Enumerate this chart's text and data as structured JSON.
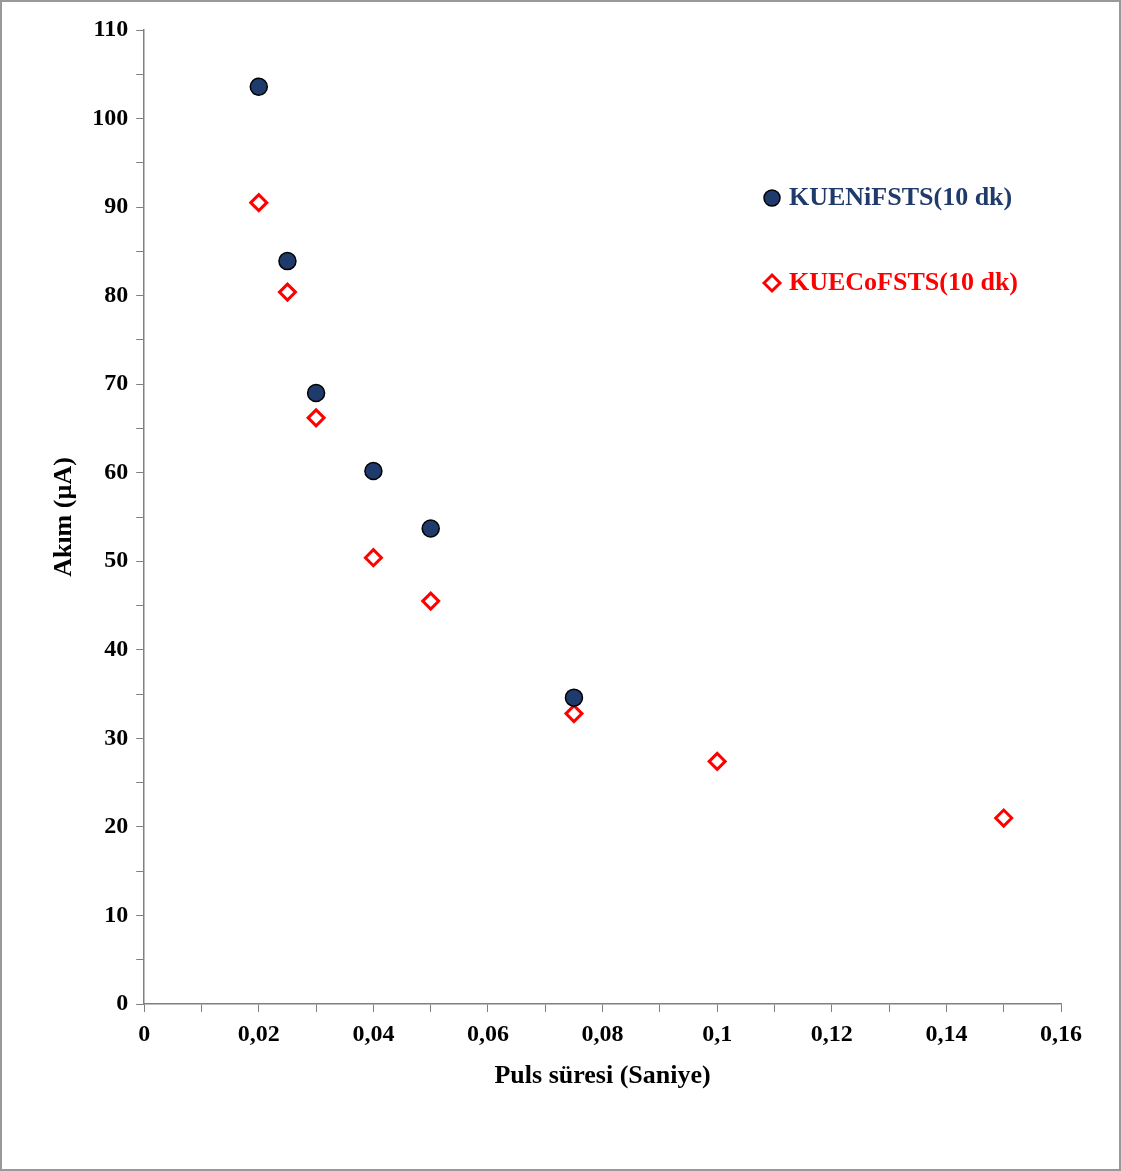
{
  "chart_data": {
    "type": "scatter",
    "xlabel": "Puls süresi (Saniye)",
    "ylabel": "Akım (µA)",
    "xlim": [
      0,
      0.16
    ],
    "ylim": [
      0,
      110
    ],
    "xticks": [
      0,
      {
        "value": 0.01,
        "label": null
      },
      {
        "value": 0.02,
        "label": "0,02"
      },
      {
        "value": 0.03,
        "label": null
      },
      {
        "value": 0.04,
        "label": "0,04"
      },
      {
        "value": 0.05,
        "label": null
      },
      {
        "value": 0.06,
        "label": "0,06"
      },
      {
        "value": 0.07,
        "label": null
      },
      {
        "value": 0.08,
        "label": "0,08"
      },
      {
        "value": 0.09,
        "label": null
      },
      {
        "value": 0.1,
        "label": "0,1"
      },
      {
        "value": 0.11,
        "label": null
      },
      {
        "value": 0.12,
        "label": "0,12"
      },
      {
        "value": 0.13,
        "label": null
      },
      {
        "value": 0.14,
        "label": "0,14"
      },
      {
        "value": 0.15,
        "label": null
      },
      {
        "value": 0.16,
        "label": "0,16"
      }
    ],
    "yticks": [
      0,
      {
        "value": 5,
        "label": null
      },
      10,
      {
        "value": 15,
        "label": null
      },
      20,
      {
        "value": 25,
        "label": null
      },
      30,
      {
        "value": 35,
        "label": null
      },
      40,
      {
        "value": 45,
        "label": null
      },
      50,
      {
        "value": 55,
        "label": null
      },
      60,
      {
        "value": 65,
        "label": null
      },
      70,
      {
        "value": 75,
        "label": null
      },
      80,
      {
        "value": 85,
        "label": null
      },
      90,
      {
        "value": 95,
        "label": null
      },
      100,
      {
        "value": 105,
        "label": null
      },
      110
    ],
    "grid": false,
    "legend": "top right",
    "series": [
      {
        "name": "KUENiFSTS(10 dk)",
        "color": "#1f3b6b",
        "marker": "circle",
        "x": [
          0.02,
          0.025,
          0.03,
          0.04,
          0.05,
          0.075
        ],
        "values": [
          103.6,
          83.9,
          69.0,
          60.2,
          53.7,
          34.6
        ]
      },
      {
        "name": "KUECoFSTS(10 dk)",
        "color": "#ff0000",
        "marker": "diamond",
        "x": [
          0.02,
          0.025,
          0.03,
          0.04,
          0.05,
          0.075,
          0.1,
          0.15
        ],
        "values": [
          90.5,
          80.4,
          66.2,
          50.4,
          45.5,
          32.8,
          27.4,
          21.0
        ]
      }
    ]
  }
}
